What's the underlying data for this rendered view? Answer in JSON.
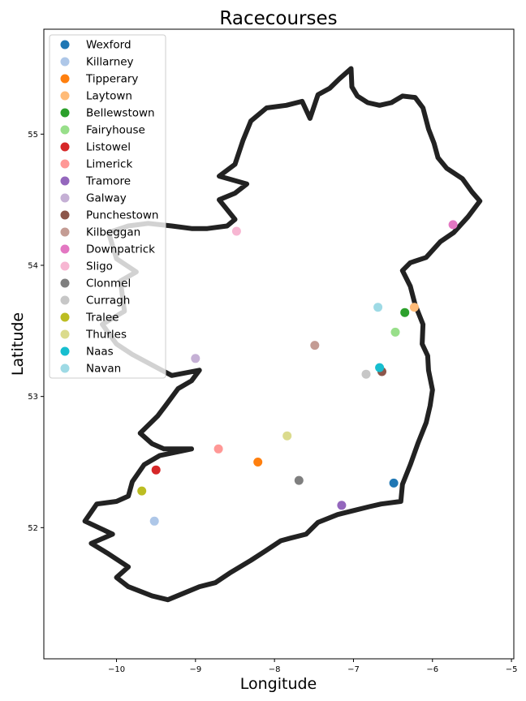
{
  "chart_data": {
    "type": "scatter",
    "title": "Racecourses",
    "xlabel": "Longitude",
    "ylabel": "Latitude",
    "xlim": [
      -10.92,
      -4.97
    ],
    "ylim": [
      51.0,
      55.8
    ],
    "xticks": [
      -10,
      -9,
      -8,
      -7,
      -6,
      -5
    ],
    "yticks": [
      52,
      53,
      54,
      55
    ],
    "grid": false,
    "legend_position": "top-left",
    "background": "#ffffff",
    "outline_color": "#222222",
    "series": [
      {
        "name": "Wexford",
        "color": "#1f77b4",
        "x": -6.49,
        "y": 52.34
      },
      {
        "name": "Killarney",
        "color": "#aec7e8",
        "x": -9.52,
        "y": 52.05
      },
      {
        "name": "Tipperary",
        "color": "#ff7f0e",
        "x": -8.21,
        "y": 52.5
      },
      {
        "name": "Laytown",
        "color": "#ffbb78",
        "x": -6.23,
        "y": 53.68
      },
      {
        "name": "Bellewstown",
        "color": "#2ca02c",
        "x": -6.35,
        "y": 53.64
      },
      {
        "name": "Fairyhouse",
        "color": "#98df8a",
        "x": -6.47,
        "y": 53.49
      },
      {
        "name": "Listowel",
        "color": "#d62728",
        "x": -9.5,
        "y": 52.44
      },
      {
        "name": "Limerick",
        "color": "#ff9896",
        "x": -8.71,
        "y": 52.6
      },
      {
        "name": "Tramore",
        "color": "#9467bd",
        "x": -7.15,
        "y": 52.17
      },
      {
        "name": "Galway",
        "color": "#c5b0d5",
        "x": -9.0,
        "y": 53.29
      },
      {
        "name": "Punchestown",
        "color": "#8c564b",
        "x": -6.64,
        "y": 53.19
      },
      {
        "name": "Kilbeggan",
        "color": "#c49c94",
        "x": -7.49,
        "y": 53.39
      },
      {
        "name": "Downpatrick",
        "color": "#e377c2",
        "x": -5.74,
        "y": 54.31
      },
      {
        "name": "Sligo",
        "color": "#f7b6d2",
        "x": -8.48,
        "y": 54.26
      },
      {
        "name": "Clonmel",
        "color": "#7f7f7f",
        "x": -7.69,
        "y": 52.36
      },
      {
        "name": "Curragh",
        "color": "#c7c7c7",
        "x": -6.84,
        "y": 53.17
      },
      {
        "name": "Tralee",
        "color": "#bcbd22",
        "x": -9.68,
        "y": 52.28
      },
      {
        "name": "Thurles",
        "color": "#dbdb8d",
        "x": -7.84,
        "y": 52.7
      },
      {
        "name": "Naas",
        "color": "#17becf",
        "x": -6.67,
        "y": 53.22
      },
      {
        "name": "Navan",
        "color": "#9edae5",
        "x": -6.69,
        "y": 53.68
      }
    ],
    "coastline": [
      [
        -7.18,
        55.42
      ],
      [
        -7.03,
        55.5
      ],
      [
        -7.02,
        55.36
      ],
      [
        -6.95,
        55.29
      ],
      [
        -6.82,
        55.24
      ],
      [
        -6.67,
        55.22
      ],
      [
        -6.52,
        55.24
      ],
      [
        -6.38,
        55.29
      ],
      [
        -6.22,
        55.28
      ],
      [
        -6.12,
        55.2
      ],
      [
        -6.05,
        55.04
      ],
      [
        -5.98,
        54.93
      ],
      [
        -5.93,
        54.82
      ],
      [
        -5.82,
        54.74
      ],
      [
        -5.62,
        54.66
      ],
      [
        -5.5,
        54.56
      ],
      [
        -5.4,
        54.49
      ],
      [
        -5.55,
        54.37
      ],
      [
        -5.73,
        54.25
      ],
      [
        -5.9,
        54.18
      ],
      [
        -6.08,
        54.06
      ],
      [
        -6.28,
        54.02
      ],
      [
        -6.38,
        53.96
      ],
      [
        -6.28,
        53.84
      ],
      [
        -6.22,
        53.7
      ],
      [
        -6.12,
        53.55
      ],
      [
        -6.13,
        53.4
      ],
      [
        -6.06,
        53.31
      ],
      [
        -6.05,
        53.2
      ],
      [
        -6.0,
        53.05
      ],
      [
        -6.03,
        52.93
      ],
      [
        -6.08,
        52.8
      ],
      [
        -6.18,
        52.65
      ],
      [
        -6.28,
        52.48
      ],
      [
        -6.38,
        52.33
      ],
      [
        -6.4,
        52.2
      ],
      [
        -6.65,
        52.18
      ],
      [
        -6.8,
        52.16
      ],
      [
        -7.0,
        52.13
      ],
      [
        -7.2,
        52.1
      ],
      [
        -7.45,
        52.04
      ],
      [
        -7.6,
        51.95
      ],
      [
        -7.8,
        51.92
      ],
      [
        -7.92,
        51.9
      ],
      [
        -8.12,
        51.82
      ],
      [
        -8.3,
        51.75
      ],
      [
        -8.55,
        51.66
      ],
      [
        -8.75,
        51.58
      ],
      [
        -8.95,
        51.55
      ],
      [
        -9.15,
        51.5
      ],
      [
        -9.35,
        51.45
      ],
      [
        -9.55,
        51.48
      ],
      [
        -9.85,
        51.55
      ],
      [
        -10.0,
        51.62
      ],
      [
        -9.85,
        51.7
      ],
      [
        -10.1,
        51.8
      ],
      [
        -10.32,
        51.88
      ],
      [
        -10.05,
        51.95
      ],
      [
        -10.4,
        52.05
      ],
      [
        -10.25,
        52.18
      ],
      [
        -10.0,
        52.2
      ],
      [
        -9.85,
        52.24
      ],
      [
        -9.8,
        52.35
      ],
      [
        -9.65,
        52.48
      ],
      [
        -9.45,
        52.55
      ],
      [
        -9.05,
        52.6
      ],
      [
        -9.4,
        52.6
      ],
      [
        -9.55,
        52.64
      ],
      [
        -9.7,
        52.72
      ],
      [
        -9.48,
        52.85
      ],
      [
        -9.38,
        52.93
      ],
      [
        -9.22,
        53.06
      ],
      [
        -9.05,
        53.12
      ],
      [
        -8.95,
        53.2
      ],
      [
        -9.3,
        53.16
      ],
      [
        -9.55,
        53.24
      ],
      [
        -9.8,
        53.32
      ],
      [
        -10.0,
        53.4
      ],
      [
        -10.18,
        53.55
      ],
      [
        -9.9,
        53.65
      ],
      [
        -9.95,
        53.88
      ],
      [
        -9.75,
        53.95
      ],
      [
        -10.0,
        54.05
      ],
      [
        -10.1,
        54.25
      ],
      [
        -9.85,
        54.3
      ],
      [
        -9.6,
        54.32
      ],
      [
        -9.3,
        54.3
      ],
      [
        -9.05,
        54.28
      ],
      [
        -8.85,
        54.28
      ],
      [
        -8.6,
        54.3
      ],
      [
        -8.5,
        54.35
      ],
      [
        -8.7,
        54.5
      ],
      [
        -8.5,
        54.55
      ],
      [
        -8.35,
        54.62
      ],
      [
        -8.7,
        54.68
      ],
      [
        -8.5,
        54.77
      ],
      [
        -8.4,
        54.95
      ],
      [
        -8.3,
        55.1
      ],
      [
        -8.1,
        55.2
      ],
      [
        -7.85,
        55.22
      ],
      [
        -7.65,
        55.25
      ],
      [
        -7.55,
        55.12
      ],
      [
        -7.45,
        55.3
      ],
      [
        -7.3,
        55.35
      ],
      [
        -7.18,
        55.42
      ]
    ],
    "axes_text": {
      "x_unit_axis": "Longitude",
      "y_unit_axis": "Latitude"
    }
  }
}
